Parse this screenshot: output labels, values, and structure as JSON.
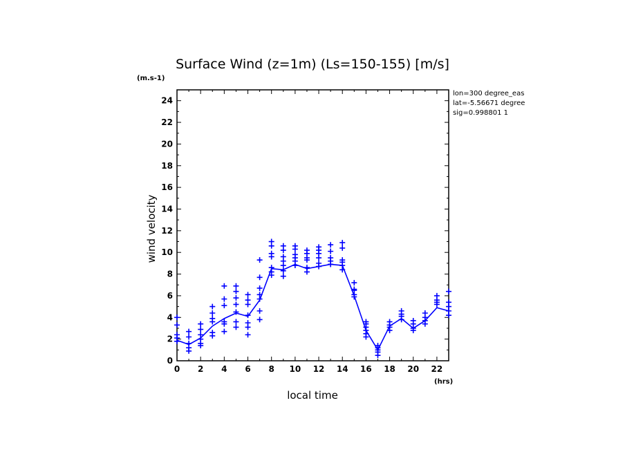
{
  "chart_data": {
    "type": "line",
    "title": "Surface Wind (z=1m) (Ls=150-155) [m/s]",
    "ylabel": "wind velocity",
    "xlabel": "local time",
    "y_unit": "(m.s-1)",
    "x_unit": "(hrs)",
    "xlim": [
      0,
      23
    ],
    "ylim": [
      0,
      25
    ],
    "x_ticks": [
      0,
      2,
      4,
      6,
      8,
      10,
      12,
      14,
      16,
      18,
      20,
      22
    ],
    "y_ticks": [
      0,
      2,
      4,
      6,
      8,
      10,
      12,
      14,
      16,
      18,
      20,
      22,
      24
    ],
    "grid": false,
    "series_color": "#0000ff",
    "annotations": [
      "lon=300 degree_eas",
      "lat=-5.56671 degree",
      "sig=0.998801 1"
    ],
    "series": [
      {
        "style": "line",
        "x": [
          0,
          1,
          2,
          3,
          4,
          5,
          6,
          7,
          8,
          9,
          10,
          11,
          12,
          13,
          14,
          15,
          16,
          17,
          18,
          19,
          20,
          21,
          22,
          23
        ],
        "y": [
          1.9,
          1.5,
          2.1,
          3.2,
          3.9,
          4.4,
          4.1,
          5.6,
          8.5,
          8.4,
          8.9,
          8.5,
          8.7,
          8.9,
          8.8,
          6.0,
          2.8,
          1.0,
          3.2,
          3.9,
          3.0,
          3.7,
          4.9,
          4.6
        ]
      },
      {
        "style": "markers",
        "marker": "+",
        "points": [
          [
            0,
            1.8
          ],
          [
            0,
            2.1
          ],
          [
            0,
            2.4
          ],
          [
            0,
            3.3
          ],
          [
            0,
            4.0
          ],
          [
            1,
            0.9
          ],
          [
            1,
            1.2
          ],
          [
            1,
            1.6
          ],
          [
            1,
            2.2
          ],
          [
            1,
            2.7
          ],
          [
            2,
            1.4
          ],
          [
            2,
            1.6
          ],
          [
            2,
            2.0
          ],
          [
            2,
            2.4
          ],
          [
            2,
            2.9
          ],
          [
            2,
            3.4
          ],
          [
            3,
            2.3
          ],
          [
            3,
            2.6
          ],
          [
            3,
            3.6
          ],
          [
            3,
            3.9
          ],
          [
            3,
            4.4
          ],
          [
            3,
            5.0
          ],
          [
            4,
            2.7
          ],
          [
            4,
            3.4
          ],
          [
            4,
            3.6
          ],
          [
            4,
            5.1
          ],
          [
            4,
            5.7
          ],
          [
            4,
            6.9
          ],
          [
            5,
            3.1
          ],
          [
            5,
            3.6
          ],
          [
            5,
            4.5
          ],
          [
            5,
            5.2
          ],
          [
            5,
            5.8
          ],
          [
            5,
            6.4
          ],
          [
            5,
            6.9
          ],
          [
            6,
            2.4
          ],
          [
            6,
            3.1
          ],
          [
            6,
            3.5
          ],
          [
            6,
            4.2
          ],
          [
            6,
            5.2
          ],
          [
            6,
            5.6
          ],
          [
            6,
            6.1
          ],
          [
            7,
            3.8
          ],
          [
            7,
            4.6
          ],
          [
            7,
            5.7
          ],
          [
            7,
            6.1
          ],
          [
            7,
            6.7
          ],
          [
            7,
            7.7
          ],
          [
            7,
            9.3
          ],
          [
            8,
            7.9
          ],
          [
            8,
            8.2
          ],
          [
            8,
            8.6
          ],
          [
            8,
            9.6
          ],
          [
            8,
            9.9
          ],
          [
            8,
            10.6
          ],
          [
            8,
            11.0
          ],
          [
            9,
            7.8
          ],
          [
            9,
            8.3
          ],
          [
            9,
            8.8
          ],
          [
            9,
            9.2
          ],
          [
            9,
            9.6
          ],
          [
            9,
            10.2
          ],
          [
            9,
            10.6
          ],
          [
            10,
            8.8
          ],
          [
            10,
            9.2
          ],
          [
            10,
            9.5
          ],
          [
            10,
            9.8
          ],
          [
            10,
            10.3
          ],
          [
            10,
            10.6
          ],
          [
            11,
            8.2
          ],
          [
            11,
            8.6
          ],
          [
            11,
            9.3
          ],
          [
            11,
            9.5
          ],
          [
            11,
            9.9
          ],
          [
            11,
            10.2
          ],
          [
            12,
            8.7
          ],
          [
            12,
            9.0
          ],
          [
            12,
            9.5
          ],
          [
            12,
            9.9
          ],
          [
            12,
            10.2
          ],
          [
            12,
            10.5
          ],
          [
            13,
            8.9
          ],
          [
            13,
            9.2
          ],
          [
            13,
            9.5
          ],
          [
            13,
            10.1
          ],
          [
            13,
            10.7
          ],
          [
            14,
            8.4
          ],
          [
            14,
            8.8
          ],
          [
            14,
            9.1
          ],
          [
            14,
            9.3
          ],
          [
            14,
            10.4
          ],
          [
            14,
            10.9
          ],
          [
            15,
            5.9
          ],
          [
            15,
            6.1
          ],
          [
            15,
            6.5
          ],
          [
            15,
            6.6
          ],
          [
            15,
            7.2
          ],
          [
            16,
            2.2
          ],
          [
            16,
            2.5
          ],
          [
            16,
            2.8
          ],
          [
            16,
            3.1
          ],
          [
            16,
            3.4
          ],
          [
            16,
            3.6
          ],
          [
            17,
            0.5
          ],
          [
            17,
            0.8
          ],
          [
            17,
            1.0
          ],
          [
            17,
            1.2
          ],
          [
            17,
            1.4
          ],
          [
            18,
            2.8
          ],
          [
            18,
            3.1
          ],
          [
            18,
            3.3
          ],
          [
            18,
            3.6
          ],
          [
            19,
            3.8
          ],
          [
            19,
            4.1
          ],
          [
            19,
            4.3
          ],
          [
            19,
            4.6
          ],
          [
            20,
            2.8
          ],
          [
            20,
            3.0
          ],
          [
            20,
            3.4
          ],
          [
            20,
            3.7
          ],
          [
            21,
            3.4
          ],
          [
            21,
            3.7
          ],
          [
            21,
            4.0
          ],
          [
            21,
            4.4
          ],
          [
            22,
            5.2
          ],
          [
            22,
            5.4
          ],
          [
            22,
            5.6
          ],
          [
            22,
            6.0
          ],
          [
            23,
            4.2
          ],
          [
            23,
            4.6
          ],
          [
            23,
            5.0
          ],
          [
            23,
            5.4
          ],
          [
            23,
            6.4
          ]
        ]
      }
    ]
  }
}
